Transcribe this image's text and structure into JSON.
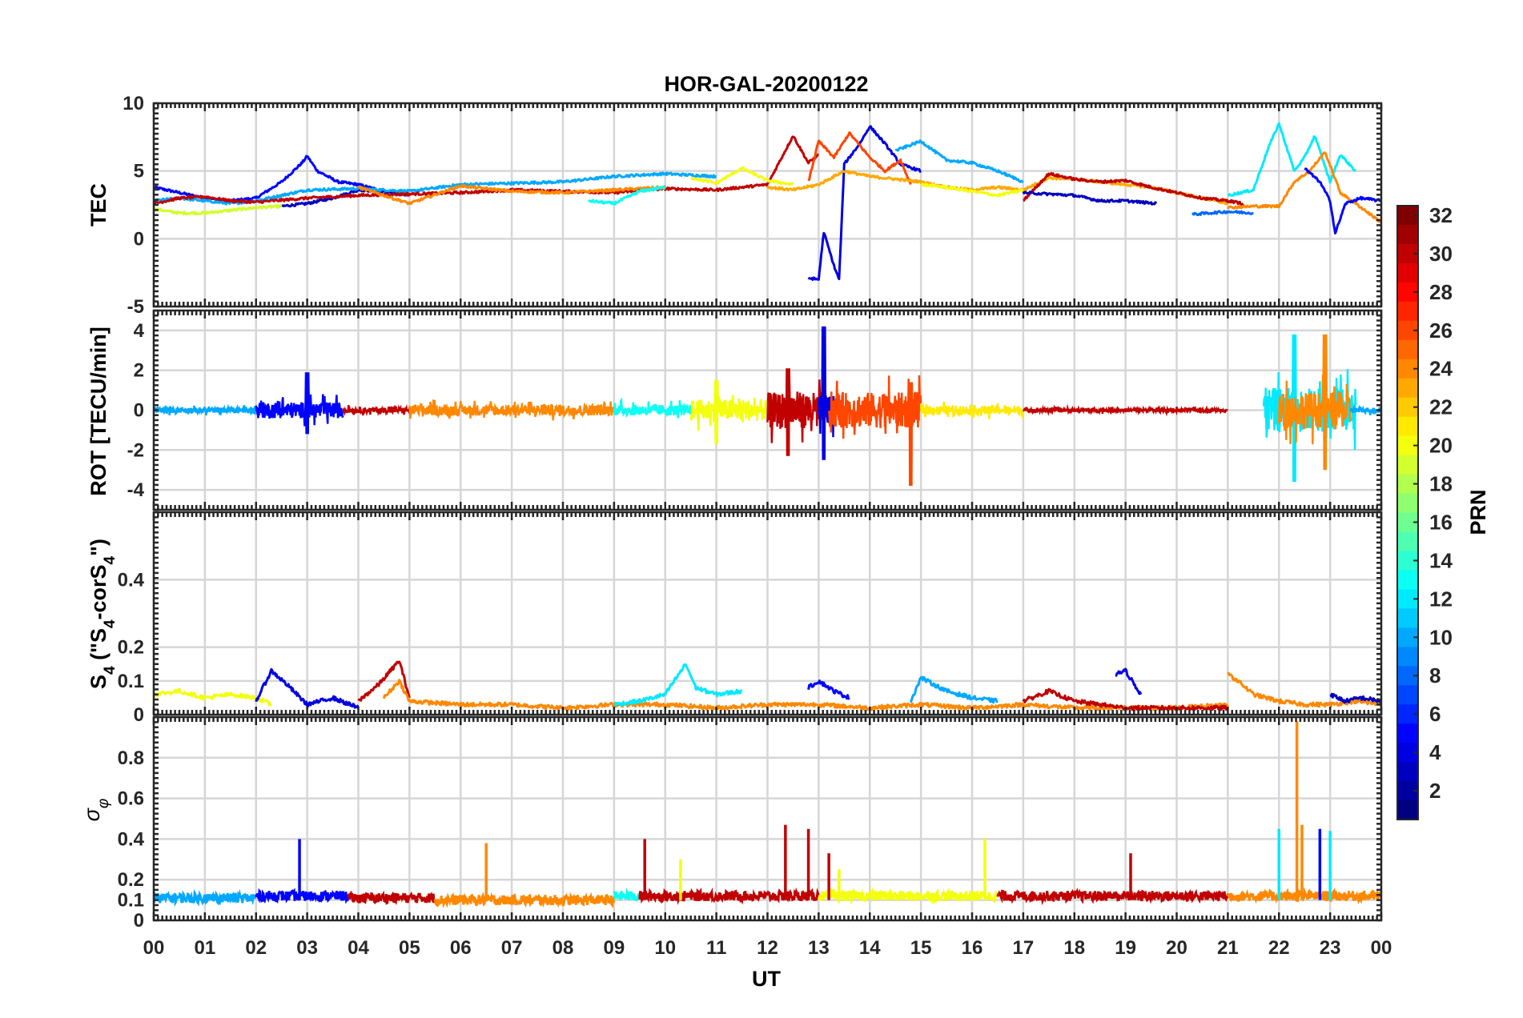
{
  "figure": {
    "title": "HOR-GAL-20200122"
  },
  "colorbar": {
    "label": "PRN",
    "min": 1,
    "max": 32,
    "ticks": [
      2,
      4,
      6,
      8,
      10,
      12,
      14,
      16,
      18,
      20,
      22,
      24,
      26,
      28,
      30,
      32
    ],
    "colormap": "jet"
  },
  "xaxis": {
    "label": "UT",
    "ticks": [
      "00",
      "01",
      "02",
      "03",
      "04",
      "05",
      "06",
      "07",
      "08",
      "09",
      "10",
      "11",
      "12",
      "13",
      "14",
      "15",
      "16",
      "17",
      "18",
      "19",
      "20",
      "21",
      "22",
      "23",
      "00"
    ]
  },
  "chart_data": [
    {
      "type": "line",
      "panel": "tec",
      "ylabel": "TEC",
      "ylim": [
        -5,
        10
      ],
      "yticks": [
        -5,
        0,
        5,
        10
      ],
      "x_unit": "hours UT",
      "grid": true,
      "series": [
        {
          "prn": 5,
          "x": [
            0,
            0.5,
            1,
            1.5,
            2,
            2.5,
            2.9,
            3,
            3.2,
            3.6,
            4,
            4.5,
            5
          ],
          "y": [
            3.8,
            3.4,
            3.0,
            2.8,
            3.0,
            4.2,
            5.6,
            6.1,
            5.0,
            4.2,
            4.0,
            3.5,
            3.2
          ]
        },
        {
          "prn": 3,
          "x": [
            2.5,
            3,
            3.5,
            4,
            4.5,
            5
          ],
          "y": [
            2.4,
            2.6,
            3.0,
            3.6,
            3.5,
            3.3
          ]
        },
        {
          "prn": 19,
          "x": [
            0,
            0.5,
            1,
            1.5,
            2,
            2.5
          ],
          "y": [
            2.2,
            1.9,
            1.9,
            2.1,
            2.3,
            2.4
          ]
        },
        {
          "prn": 10,
          "x": [
            0,
            0.5,
            1,
            1.5,
            2,
            2.5,
            3,
            4,
            5,
            6,
            7,
            8,
            9,
            10,
            11
          ],
          "y": [
            2.8,
            3.0,
            2.8,
            2.6,
            2.8,
            3.2,
            3.6,
            3.7,
            3.5,
            4.0,
            4.1,
            4.2,
            4.6,
            4.8,
            4.6
          ]
        },
        {
          "prn": 30,
          "x": [
            0,
            0.5,
            1,
            1.5,
            2,
            3,
            4,
            5,
            6,
            7,
            8,
            9,
            10,
            11,
            12,
            12.5,
            12.8,
            13
          ],
          "y": [
            2.6,
            3.0,
            3.1,
            2.8,
            2.7,
            3.0,
            3.2,
            3.3,
            3.4,
            3.6,
            3.5,
            3.4,
            3.7,
            3.6,
            4.0,
            7.6,
            5.6,
            6.2
          ]
        },
        {
          "prn": 24,
          "x": [
            4,
            5,
            6,
            7,
            8,
            9,
            10
          ],
          "y": [
            3.8,
            2.6,
            3.9,
            3.5,
            3.4,
            3.6,
            3.8
          ]
        },
        {
          "prn": 13,
          "x": [
            8.5,
            9,
            9.5,
            10
          ],
          "y": [
            2.8,
            2.6,
            3.5,
            3.8
          ]
        },
        {
          "prn": 20,
          "x": [
            10.5,
            11,
            11.5,
            12,
            12.5
          ],
          "y": [
            4.5,
            4.1,
            5.2,
            4.3,
            4.0
          ]
        },
        {
          "prn": 4,
          "x": [
            12.8,
            13.0,
            13.1,
            13.3,
            13.4,
            13.5,
            13.8,
            14,
            14.3,
            14.6,
            15
          ],
          "y": [
            -2.9,
            -3.0,
            0.5,
            -2.0,
            -3.0,
            5.5,
            7.0,
            8.3,
            7.0,
            5.5,
            5.0
          ]
        },
        {
          "prn": 26,
          "x": [
            12.8,
            13,
            13.3,
            13.6,
            14,
            14.3,
            14.6,
            14.8
          ],
          "y": [
            4.2,
            7.2,
            6.0,
            7.8,
            6.0,
            5.0,
            5.8,
            4.0
          ]
        },
        {
          "prn": 23,
          "x": [
            12,
            12.5,
            13,
            13.5,
            14,
            14.5,
            15,
            15.5,
            16,
            16.5,
            17,
            17.5,
            18,
            18.5,
            19,
            19.5,
            20,
            20.5,
            21
          ],
          "y": [
            3.8,
            3.6,
            4.0,
            5.0,
            4.6,
            4.4,
            4.2,
            3.8,
            3.6,
            3.8,
            3.6,
            4.5,
            4.4,
            4.2,
            4.0,
            3.8,
            3.4,
            3.0,
            2.6
          ]
        },
        {
          "prn": 10,
          "x": [
            14.5,
            15,
            15.5,
            16,
            16.5,
            17
          ],
          "y": [
            6.5,
            7.2,
            5.8,
            5.6,
            5.0,
            4.2
          ]
        },
        {
          "prn": 20,
          "x": [
            15,
            15.5,
            16,
            16.5,
            17
          ],
          "y": [
            4.0,
            3.8,
            3.5,
            3.2,
            3.6
          ]
        },
        {
          "prn": 30,
          "x": [
            17,
            17.5,
            18,
            18.5,
            19,
            19.5,
            20,
            20.5,
            21,
            21.3
          ],
          "y": [
            2.8,
            4.8,
            4.4,
            4.2,
            4.3,
            3.8,
            3.4,
            3.0,
            2.8,
            2.6
          ]
        },
        {
          "prn": 3,
          "x": [
            17,
            17.5,
            18,
            18.5,
            19,
            19.6
          ],
          "y": [
            3.4,
            3.3,
            3.2,
            2.8,
            2.8,
            2.6
          ]
        },
        {
          "prn": 12,
          "x": [
            21,
            21.5,
            21.8,
            22,
            22.3,
            22.5,
            22.7,
            23,
            23.2,
            23.5
          ],
          "y": [
            3.2,
            3.6,
            6.8,
            8.5,
            5.0,
            6.0,
            7.6,
            4.2,
            6.2,
            5.0
          ]
        },
        {
          "prn": 8,
          "x": [
            20.3,
            21,
            21.5
          ],
          "y": [
            1.8,
            2.0,
            1.9
          ]
        },
        {
          "prn": 24,
          "x": [
            21,
            21.5,
            22,
            22.3,
            22.6,
            22.9,
            23.2,
            23.5,
            24
          ],
          "y": [
            2.3,
            2.4,
            2.4,
            4.2,
            5.0,
            6.4,
            3.4,
            2.6,
            1.2
          ]
        },
        {
          "prn": 5,
          "x": [
            22.5,
            22.8,
            23,
            23.1,
            23.3,
            23.6,
            24
          ],
          "y": [
            5.2,
            4.2,
            2.8,
            0.4,
            2.6,
            3.0,
            2.8
          ]
        }
      ]
    },
    {
      "type": "line",
      "panel": "rot",
      "ylabel": "ROT [TECU/min]",
      "ylim": [
        -5,
        5
      ],
      "yticks": [
        -4,
        -2,
        0,
        2,
        4
      ],
      "x_unit": "hours UT",
      "grid": true,
      "bursts": [
        {
          "prn": 10,
          "x0": 0,
          "x1": 2,
          "amp": 0.3
        },
        {
          "prn": 5,
          "x0": 2,
          "x1": 3.7,
          "amp": 0.9,
          "peak": {
            "x": 3.0,
            "hi": 1.9,
            "lo": -1.2
          }
        },
        {
          "prn": 30,
          "x0": 3.7,
          "x1": 5,
          "amp": 0.3
        },
        {
          "prn": 24,
          "x0": 5,
          "x1": 9,
          "amp": 0.6
        },
        {
          "prn": 13,
          "x0": 9,
          "x1": 10.5,
          "amp": 0.6
        },
        {
          "prn": 20,
          "x0": 10.5,
          "x1": 12,
          "amp": 1.2,
          "peak": {
            "x": 11.0,
            "hi": 1.5,
            "lo": -1.7
          }
        },
        {
          "prn": 30,
          "x0": 12,
          "x1": 13.2,
          "amp": 2.0,
          "peak": {
            "x": 12.4,
            "hi": 2.1,
            "lo": -2.3
          }
        },
        {
          "prn": 4,
          "x0": 13,
          "x1": 13.3,
          "amp": 1.6,
          "peak": {
            "x": 13.1,
            "hi": 4.2,
            "lo": -2.5
          }
        },
        {
          "prn": 26,
          "x0": 13.2,
          "x1": 15,
          "amp": 2.0,
          "peak": {
            "x": 14.8,
            "hi": 1.4,
            "lo": -3.8
          }
        },
        {
          "prn": 21,
          "x0": 15,
          "x1": 17,
          "amp": 0.5
        },
        {
          "prn": 30,
          "x0": 17,
          "x1": 21,
          "amp": 0.2
        },
        {
          "prn": 12,
          "x0": 21.7,
          "x1": 23.5,
          "amp": 2.5,
          "peak": {
            "x": 22.3,
            "hi": 3.8,
            "lo": -3.6
          }
        },
        {
          "prn": 24,
          "x0": 22,
          "x1": 23.4,
          "amp": 2.0,
          "peak": {
            "x": 22.9,
            "hi": 3.8,
            "lo": -3.0
          }
        },
        {
          "prn": 10,
          "x0": 23.4,
          "x1": 24,
          "amp": 0.3
        }
      ]
    },
    {
      "type": "line",
      "panel": "s4",
      "ylabel": "S4 (\"S4-corS4\")",
      "ylim": [
        0,
        0.6
      ],
      "yticks": [
        0,
        0.1,
        0.2,
        0.4
      ],
      "x_unit": "hours UT",
      "grid": true,
      "series": [
        {
          "prn": 20,
          "x": [
            0,
            0.5,
            1,
            1.5,
            2,
            2.3
          ],
          "y": [
            0.06,
            0.07,
            0.05,
            0.06,
            0.05,
            0.03
          ]
        },
        {
          "prn": 4,
          "x": [
            2,
            2.3,
            2.6,
            3,
            3.5,
            4
          ],
          "y": [
            0.04,
            0.13,
            0.09,
            0.03,
            0.05,
            0.02
          ]
        },
        {
          "prn": 30,
          "x": [
            4,
            4.4,
            4.8,
            5
          ],
          "y": [
            0.04,
            0.09,
            0.16,
            0.05
          ]
        },
        {
          "prn": 24,
          "x": [
            4.5,
            4.8,
            5,
            6,
            7,
            8,
            9,
            10,
            11,
            12,
            13,
            14,
            15,
            16,
            17,
            18,
            19,
            20,
            21
          ],
          "y": [
            0.05,
            0.1,
            0.04,
            0.03,
            0.03,
            0.02,
            0.03,
            0.03,
            0.02,
            0.03,
            0.03,
            0.02,
            0.03,
            0.02,
            0.03,
            0.02,
            0.02,
            0.02,
            0.03
          ]
        },
        {
          "prn": 12,
          "x": [
            9,
            9.5,
            10,
            10.4,
            10.6,
            11,
            11.5
          ],
          "y": [
            0.03,
            0.04,
            0.06,
            0.15,
            0.08,
            0.06,
            0.07
          ]
        },
        {
          "prn": 5,
          "x": [
            12.8,
            13,
            13.3,
            13.6
          ],
          "y": [
            0.08,
            0.1,
            0.07,
            0.05
          ]
        },
        {
          "prn": 10,
          "x": [
            14.8,
            15,
            15.5,
            16,
            16.5
          ],
          "y": [
            0.04,
            0.11,
            0.07,
            0.05,
            0.04
          ]
        },
        {
          "prn": 4,
          "x": [
            18.8,
            19,
            19.3
          ],
          "y": [
            0.12,
            0.13,
            0.06
          ]
        },
        {
          "prn": 30,
          "x": [
            17,
            17.5,
            18,
            18.5,
            19,
            20,
            21
          ],
          "y": [
            0.04,
            0.07,
            0.04,
            0.03,
            0.02,
            0.02,
            0.02
          ]
        },
        {
          "prn": 24,
          "x": [
            21,
            21.2,
            21.5,
            22,
            22.5,
            23,
            23.5,
            24
          ],
          "y": [
            0.12,
            0.1,
            0.06,
            0.04,
            0.03,
            0.03,
            0.04,
            0.03
          ]
        },
        {
          "prn": 3,
          "x": [
            23,
            23.3,
            23.6,
            24
          ],
          "y": [
            0.06,
            0.04,
            0.05,
            0.04
          ]
        }
      ]
    },
    {
      "type": "line",
      "panel": "sigphi",
      "ylabel": "σφ",
      "ylim": [
        0,
        1
      ],
      "yticks": [
        0,
        0.1,
        0.2,
        0.4,
        0.6,
        0.8
      ],
      "x_unit": "hours UT",
      "grid": true,
      "baseline": [
        {
          "prn": 10,
          "x0": 0,
          "x1": 2,
          "level": 0.11
        },
        {
          "prn": 5,
          "x0": 2,
          "x1": 3.8,
          "level": 0.12
        },
        {
          "prn": 30,
          "x0": 3.8,
          "x1": 5.5,
          "level": 0.11
        },
        {
          "prn": 24,
          "x0": 5.5,
          "x1": 9,
          "level": 0.1
        },
        {
          "prn": 13,
          "x0": 9,
          "x1": 9.5,
          "level": 0.12
        },
        {
          "prn": 30,
          "x0": 9.5,
          "x1": 13,
          "level": 0.12
        },
        {
          "prn": 20,
          "x0": 13,
          "x1": 16.5,
          "level": 0.12
        },
        {
          "prn": 30,
          "x0": 16.5,
          "x1": 21,
          "level": 0.12
        },
        {
          "prn": 24,
          "x0": 21,
          "x1": 24,
          "level": 0.12
        }
      ],
      "spikes": [
        {
          "prn": 5,
          "x": 2.85,
          "y": 0.4
        },
        {
          "prn": 24,
          "x": 6.5,
          "y": 0.38
        },
        {
          "prn": 30,
          "x": 9.6,
          "y": 0.4
        },
        {
          "prn": 20,
          "x": 10.3,
          "y": 0.3
        },
        {
          "prn": 30,
          "x": 12.35,
          "y": 0.47
        },
        {
          "prn": 30,
          "x": 12.8,
          "y": 0.45
        },
        {
          "prn": 30,
          "x": 13.2,
          "y": 0.33
        },
        {
          "prn": 20,
          "x": 13.4,
          "y": 0.25
        },
        {
          "prn": 20,
          "x": 16.25,
          "y": 0.4
        },
        {
          "prn": 30,
          "x": 19.1,
          "y": 0.33
        },
        {
          "prn": 12,
          "x": 22.0,
          "y": 0.45
        },
        {
          "prn": 24,
          "x": 22.35,
          "y": 0.98
        },
        {
          "prn": 24,
          "x": 22.45,
          "y": 0.47
        },
        {
          "prn": 5,
          "x": 22.8,
          "y": 0.45
        },
        {
          "prn": 12,
          "x": 23.0,
          "y": 0.44
        }
      ]
    }
  ]
}
